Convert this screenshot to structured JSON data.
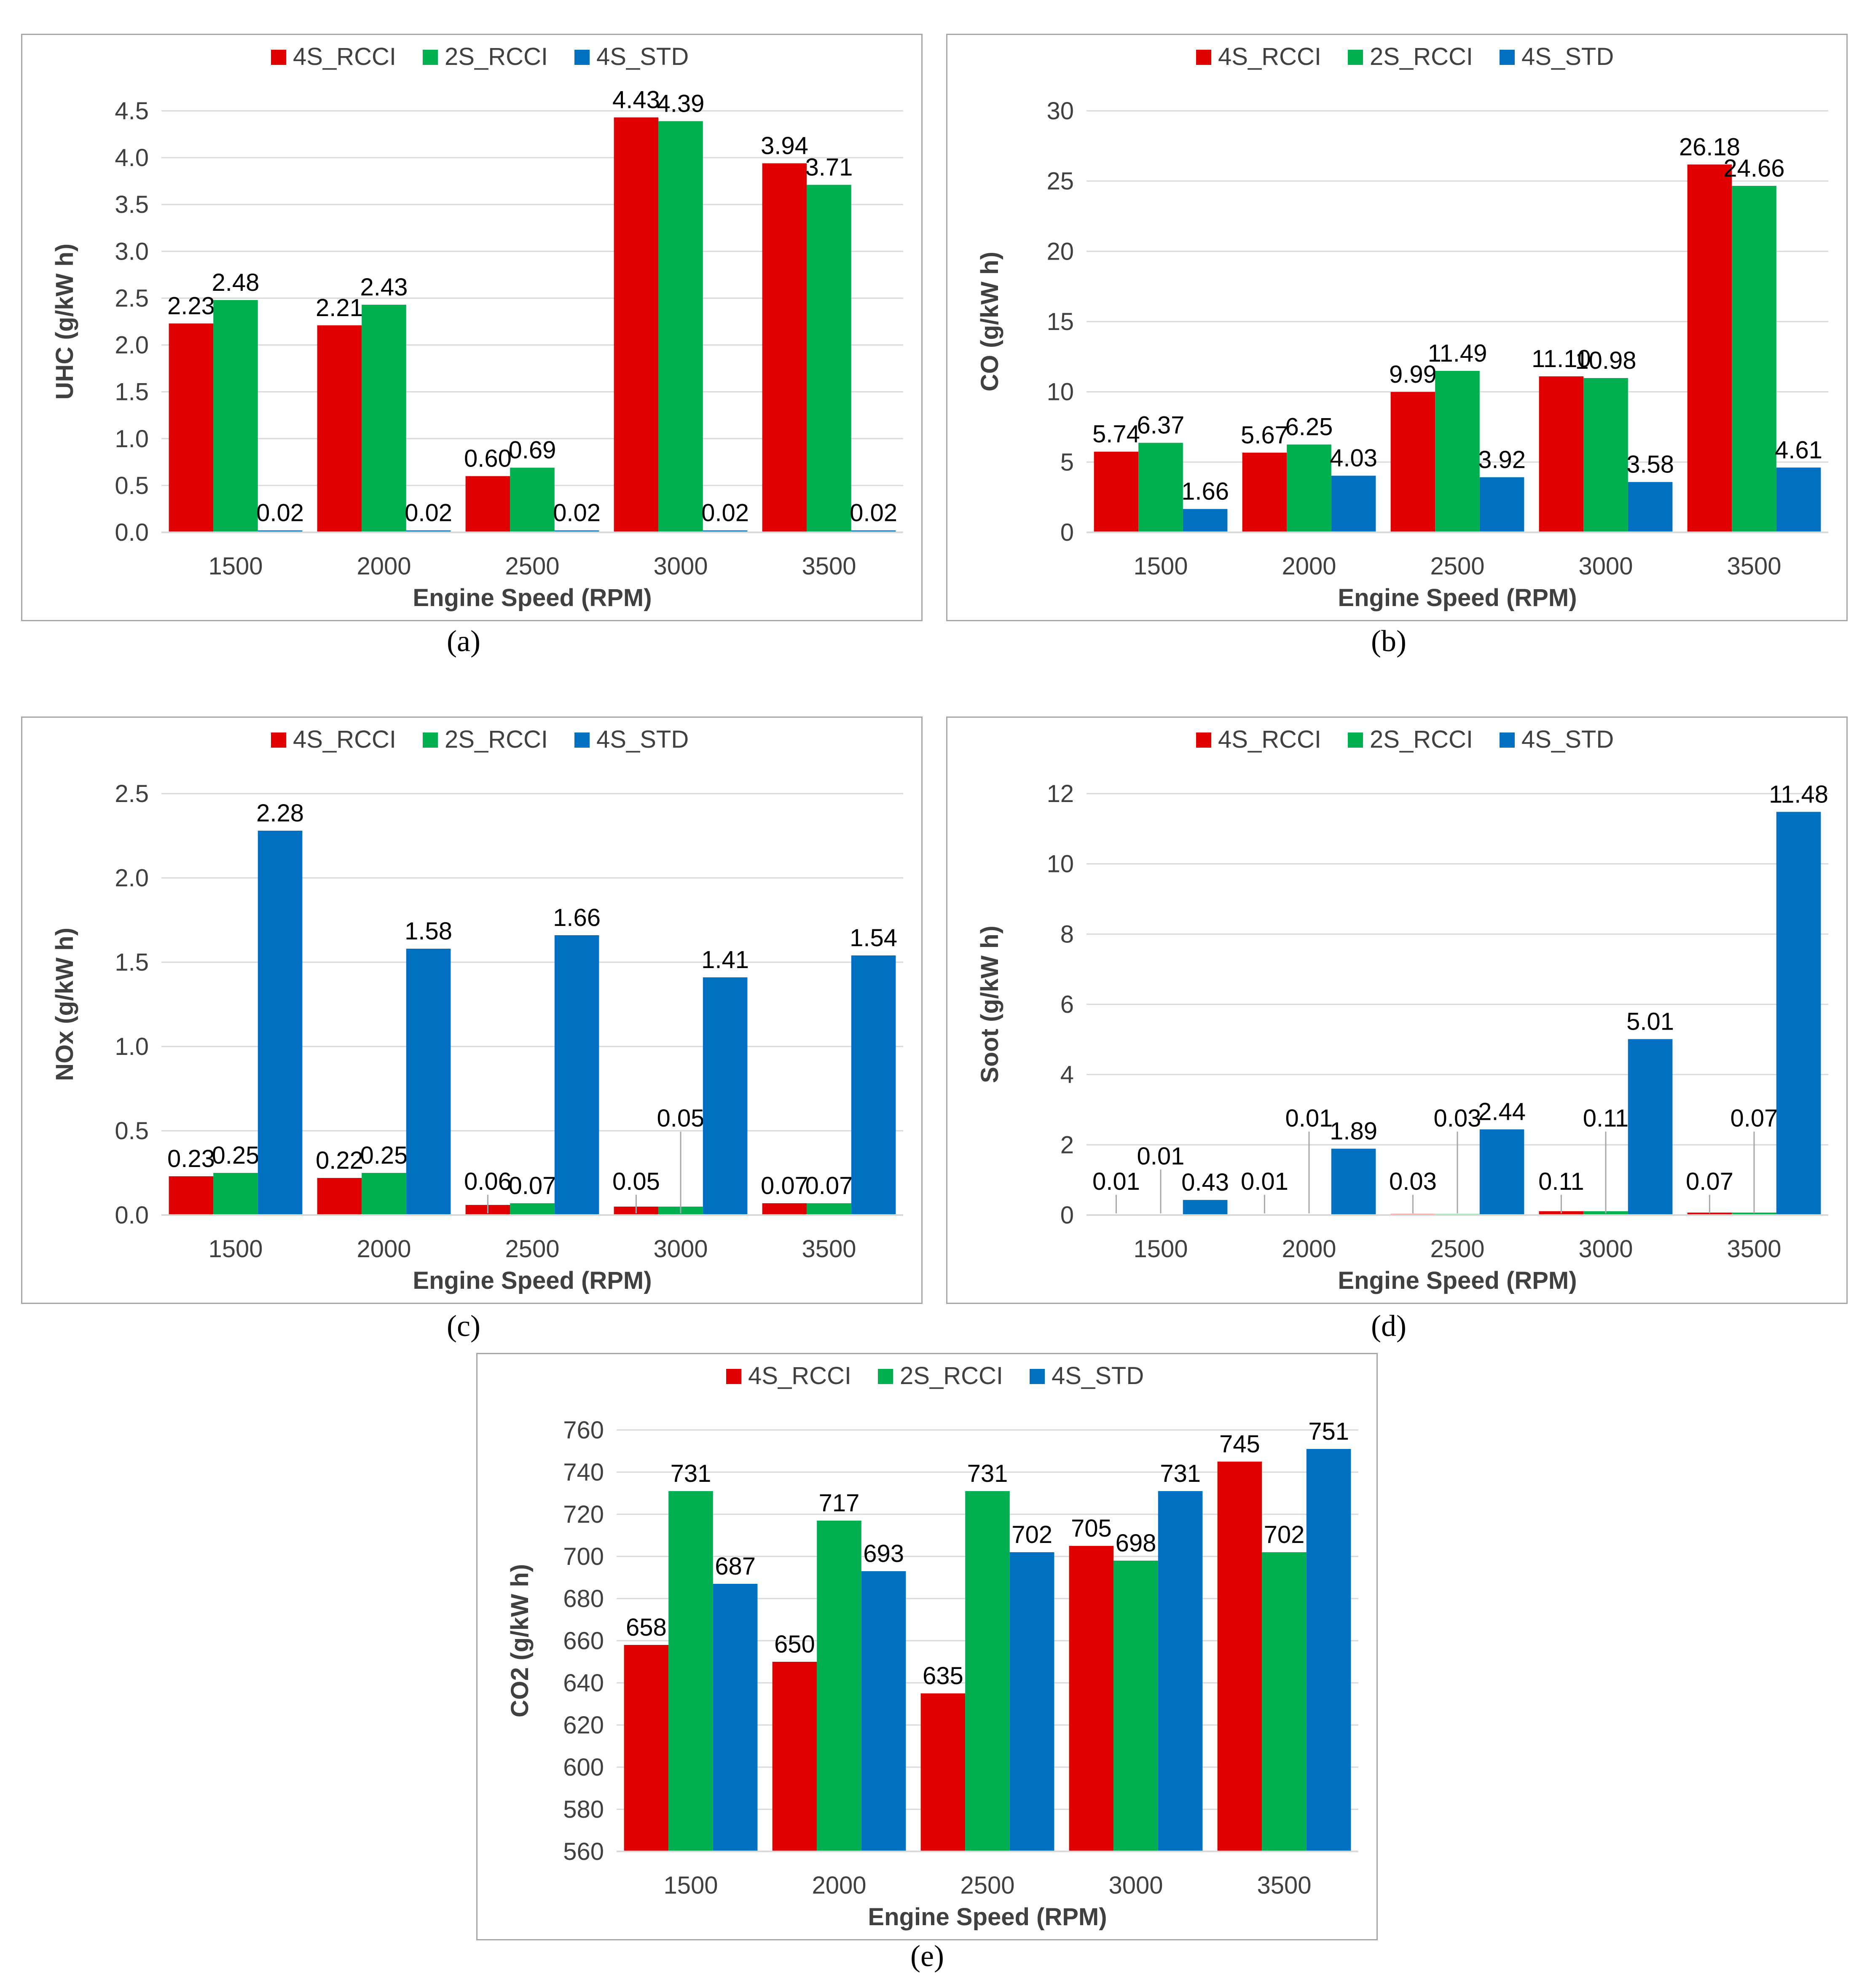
{
  "colors": {
    "4S_RCCI": "#e00000",
    "2S_RCCI": "#00b050",
    "4S_STD": "#0070c0"
  },
  "chart_data": [
    {
      "id": "a",
      "type": "bar",
      "caption": "(a)",
      "categories": [
        "1500",
        "2000",
        "2500",
        "3000",
        "3500"
      ],
      "xlabel": "Engine Speed (RPM)",
      "ylabel": "UHC (g/kW h)",
      "ylim": [
        0,
        4.5
      ],
      "yticks": [
        "0.0",
        "0.5",
        "1.0",
        "1.5",
        "2.0",
        "2.5",
        "3.0",
        "3.5",
        "4.0",
        "4.5"
      ],
      "ytick_values": [
        0,
        0.5,
        1,
        1.5,
        2,
        2.5,
        3,
        3.5,
        4,
        4.5
      ],
      "legend": "top-center",
      "series": [
        {
          "name": "4S_RCCI",
          "values": [
            2.23,
            2.21,
            0.6,
            4.43,
            3.94
          ],
          "labels": [
            "2.23",
            "2.21",
            "0.60",
            "4.43",
            "3.94"
          ]
        },
        {
          "name": "2S_RCCI",
          "values": [
            2.48,
            2.43,
            0.69,
            4.39,
            3.71
          ],
          "labels": [
            "2.48",
            "2.43",
            "0.69",
            "4.39",
            "3.71"
          ]
        },
        {
          "name": "4S_STD",
          "values": [
            0.02,
            0.02,
            0.02,
            0.02,
            0.02
          ],
          "labels": [
            "0.02",
            "0.02",
            "0.02",
            "0.02",
            "0.02"
          ]
        }
      ]
    },
    {
      "id": "b",
      "type": "bar",
      "caption": "(b)",
      "categories": [
        "1500",
        "2000",
        "2500",
        "3000",
        "3500"
      ],
      "xlabel": "Engine Speed (RPM)",
      "ylabel": "CO (g/kW h)",
      "ylim": [
        0,
        30
      ],
      "yticks": [
        "0",
        "5",
        "10",
        "15",
        "20",
        "25",
        "30"
      ],
      "ytick_values": [
        0,
        5,
        10,
        15,
        20,
        25,
        30
      ],
      "legend": "top-center",
      "series": [
        {
          "name": "4S_RCCI",
          "values": [
            5.74,
            5.67,
            9.99,
            11.1,
            26.18
          ],
          "labels": [
            "5.74",
            "5.67",
            "9.99",
            "11.10",
            "26.18"
          ]
        },
        {
          "name": "2S_RCCI",
          "values": [
            6.37,
            6.25,
            11.49,
            10.98,
            24.66
          ],
          "labels": [
            "6.37",
            "6.25",
            "11.49",
            "10.98",
            "24.66"
          ]
        },
        {
          "name": "4S_STD",
          "values": [
            1.66,
            4.03,
            3.92,
            3.58,
            4.61
          ],
          "labels": [
            "1.66",
            "4.03",
            "3.92",
            "3.58",
            "4.61"
          ]
        }
      ]
    },
    {
      "id": "c",
      "type": "bar",
      "caption": "(c)",
      "categories": [
        "1500",
        "2000",
        "2500",
        "3000",
        "3500"
      ],
      "xlabel": "Engine Speed (RPM)",
      "ylabel": "NOx (g/kW h)",
      "ylim": [
        0,
        2.5
      ],
      "yticks": [
        "0.0",
        "0.5",
        "1.0",
        "1.5",
        "2.0",
        "2.5"
      ],
      "ytick_values": [
        0,
        0.5,
        1,
        1.5,
        2,
        2.5
      ],
      "legend": "top-center",
      "series": [
        {
          "name": "4S_RCCI",
          "values": [
            0.23,
            0.22,
            0.06,
            0.05,
            0.07
          ],
          "labels": [
            "0.23",
            "0.22",
            "0.06",
            "0.05",
            "0.07"
          ]
        },
        {
          "name": "2S_RCCI",
          "values": [
            0.25,
            0.25,
            0.07,
            0.05,
            0.07
          ],
          "labels": [
            "0.25",
            "0.25",
            "0.07",
            "0.05",
            "0.07"
          ]
        },
        {
          "name": "4S_STD",
          "values": [
            2.28,
            1.58,
            1.66,
            1.41,
            1.54
          ],
          "labels": [
            "2.28",
            "1.58",
            "1.66",
            "1.41",
            "1.54"
          ]
        }
      ]
    },
    {
      "id": "d",
      "type": "bar",
      "caption": "(d)",
      "categories": [
        "1500",
        "2000",
        "2500",
        "3000",
        "3500"
      ],
      "xlabel": "Engine Speed (RPM)",
      "ylabel": "Soot (g/kW h)",
      "ylim": [
        0,
        12
      ],
      "yticks": [
        "0",
        "2",
        "4",
        "6",
        "8",
        "10",
        "12"
      ],
      "ytick_values": [
        0,
        2,
        4,
        6,
        8,
        10,
        12
      ],
      "legend": "top-center",
      "series": [
        {
          "name": "4S_RCCI",
          "values": [
            0.01,
            0.01,
            0.03,
            0.11,
            0.07
          ],
          "labels": [
            "0.01",
            "0.01",
            "0.03",
            "0.11",
            "0.07"
          ]
        },
        {
          "name": "2S_RCCI",
          "values": [
            0.01,
            0.01,
            0.03,
            0.11,
            0.07
          ],
          "labels": [
            "0.01",
            "0.01",
            "0.03",
            "0.11",
            "0.07"
          ]
        },
        {
          "name": "4S_STD",
          "values": [
            0.43,
            1.89,
            2.44,
            5.01,
            11.48
          ],
          "labels": [
            "0.43",
            "1.89",
            "2.44",
            "5.01",
            "11.48"
          ]
        }
      ]
    },
    {
      "id": "e",
      "type": "bar",
      "caption": "(e)",
      "categories": [
        "1500",
        "2000",
        "2500",
        "3000",
        "3500"
      ],
      "xlabel": "Engine Speed (RPM)",
      "ylabel": "CO2 (g/kW h)",
      "ylim": [
        560,
        760
      ],
      "yticks": [
        "560",
        "580",
        "600",
        "620",
        "640",
        "660",
        "680",
        "700",
        "720",
        "740",
        "760"
      ],
      "ytick_values": [
        560,
        580,
        600,
        620,
        640,
        660,
        680,
        700,
        720,
        740,
        760
      ],
      "legend": "top-center",
      "series": [
        {
          "name": "4S_RCCI",
          "values": [
            658,
            650,
            635,
            705,
            745
          ],
          "labels": [
            "658",
            "650",
            "635",
            "705",
            "745"
          ]
        },
        {
          "name": "2S_RCCI",
          "values": [
            731,
            717,
            731,
            698,
            702
          ],
          "labels": [
            "731",
            "717",
            "731",
            "698",
            "702"
          ]
        },
        {
          "name": "4S_STD",
          "values": [
            687,
            693,
            702,
            731,
            751
          ],
          "labels": [
            "687",
            "693",
            "702",
            "731",
            "751"
          ]
        }
      ]
    }
  ]
}
